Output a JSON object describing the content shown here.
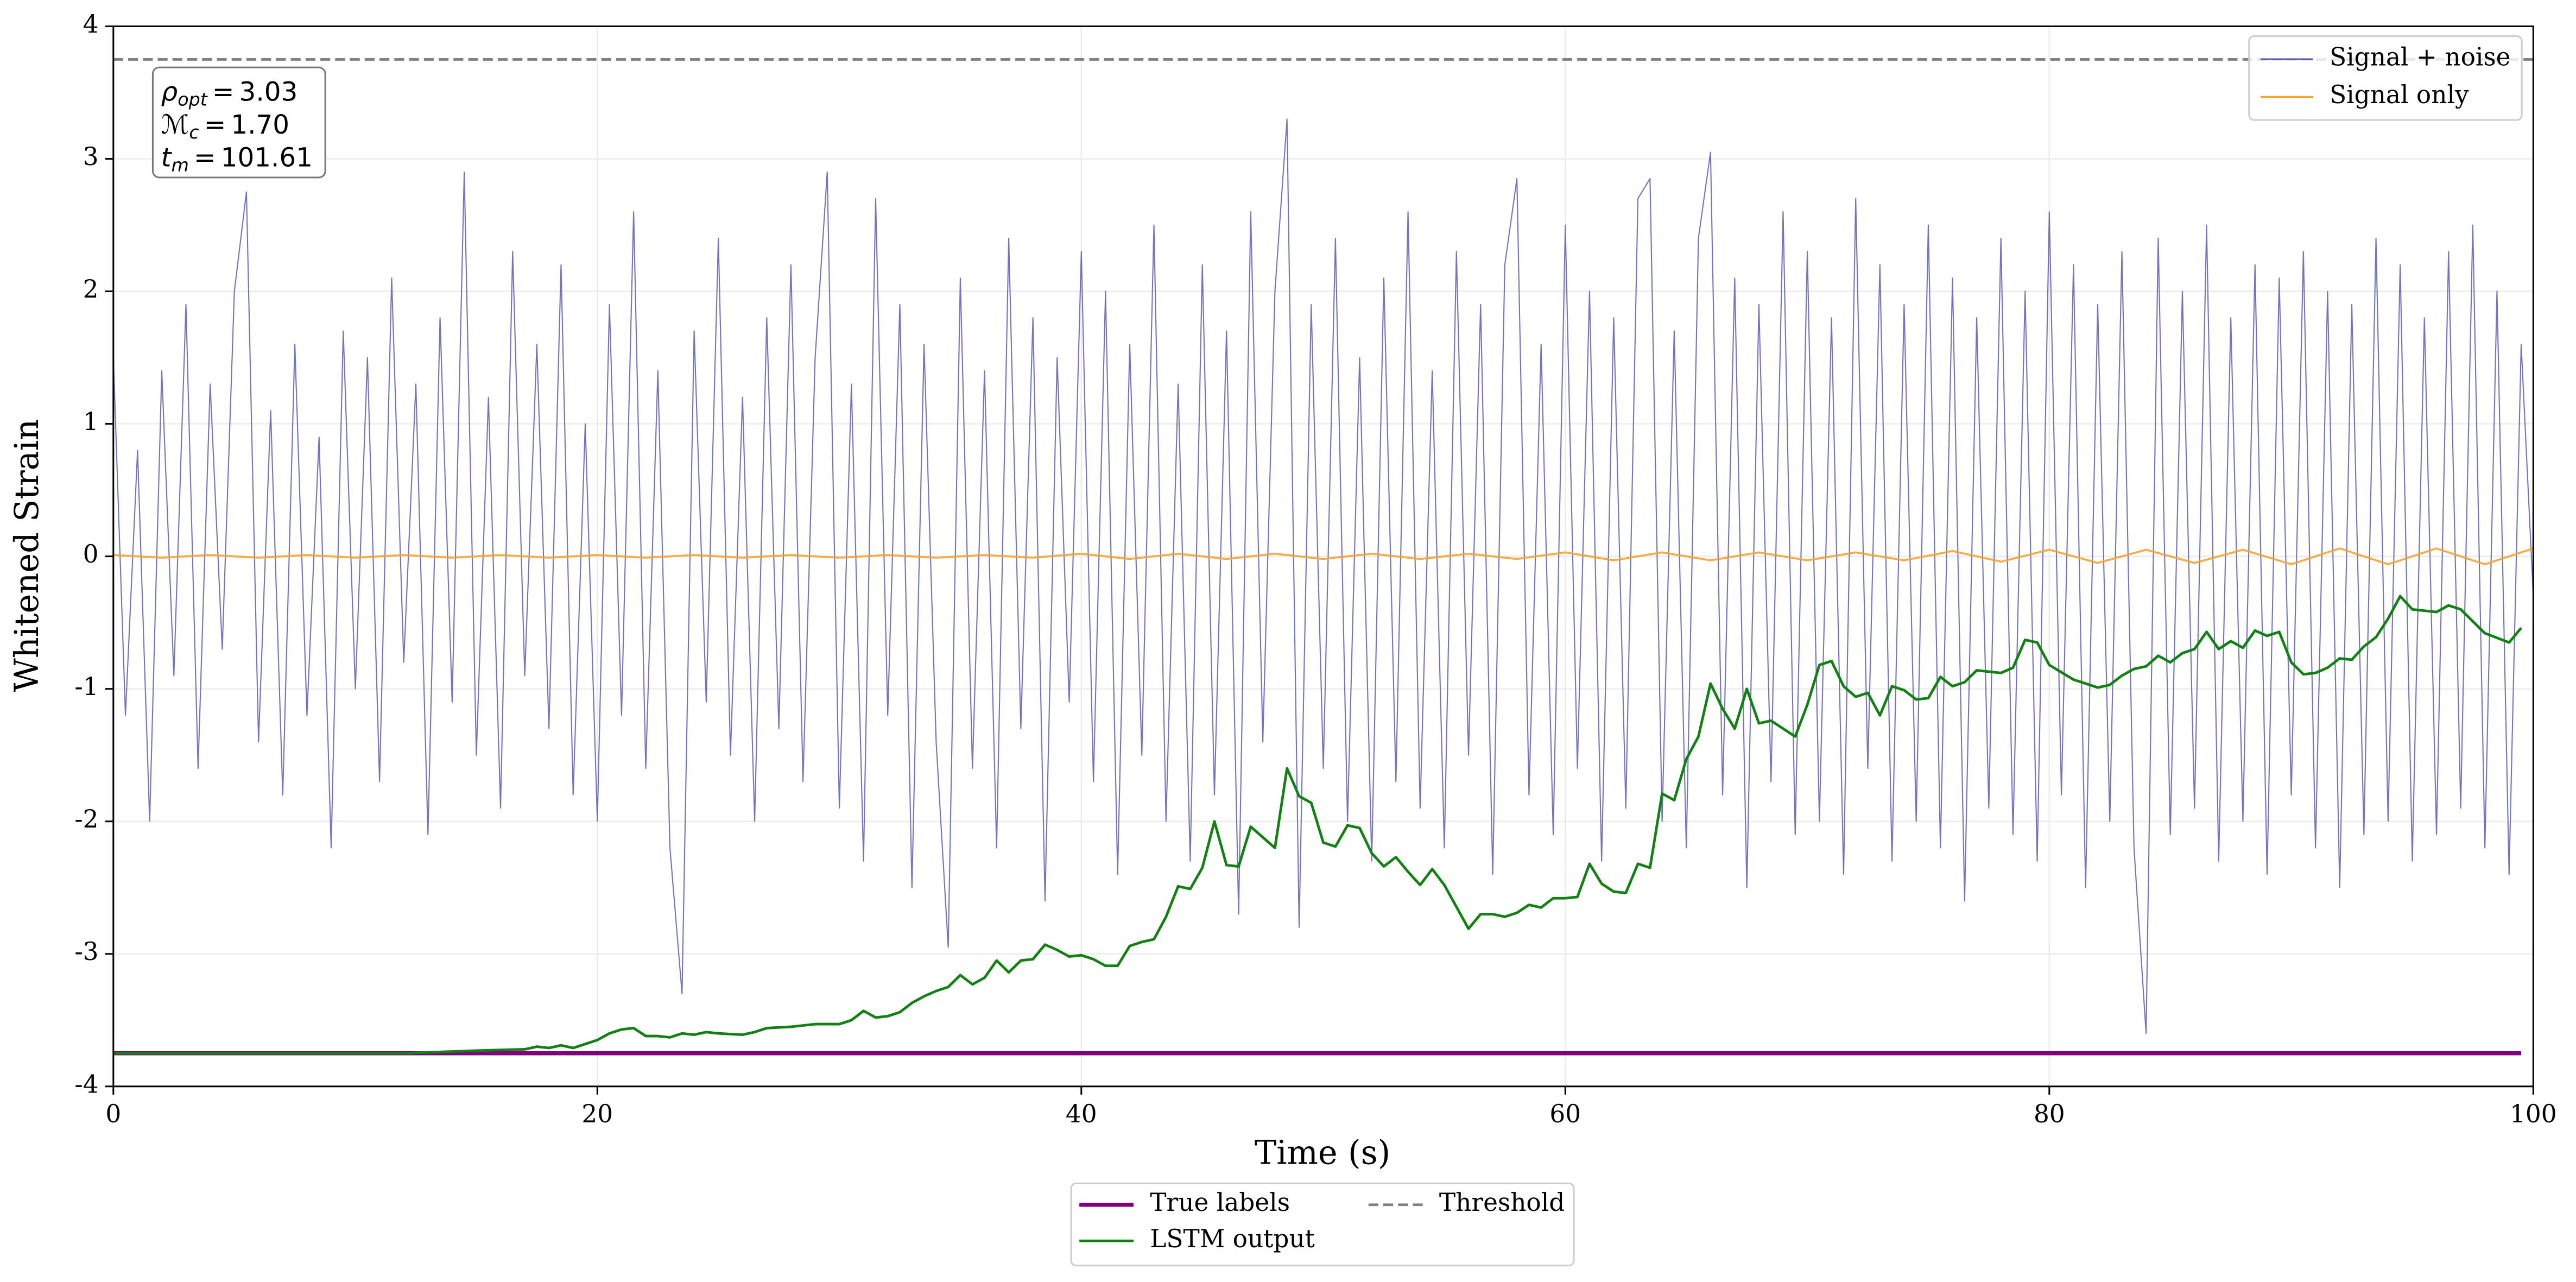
{
  "chart_data": {
    "type": "line",
    "xlabel": "Time (s)",
    "ylabel": "Whitened Strain",
    "xlim": [
      0,
      100
    ],
    "ylim": [
      -4,
      4
    ],
    "xticks": [
      0,
      20,
      40,
      60,
      80,
      100
    ],
    "yticks": [
      -4,
      -3,
      -2,
      -1,
      0,
      1,
      2,
      3,
      4
    ],
    "grid": true,
    "annotations": [
      {
        "symbol": "ρ",
        "subscript": "opt",
        "relation": "=",
        "value": "3.03"
      },
      {
        "symbol": "ℳ",
        "subscript": "c",
        "relation": "=",
        "value": "1.70"
      },
      {
        "symbol": "t",
        "subscript": "m",
        "relation": "=",
        "value": "101.61"
      }
    ],
    "series": [
      {
        "name": "Signal + noise",
        "color": "#5a5ab4",
        "legend": "upper right",
        "x": [
          0,
          0.5,
          1,
          1.5,
          2,
          2.5,
          3,
          3.5,
          4,
          4.5,
          5,
          5.5,
          6,
          6.5,
          7,
          7.5,
          8,
          8.5,
          9,
          9.5,
          10,
          10.5,
          11,
          11.5,
          12,
          12.5,
          13,
          13.5,
          14,
          14.5,
          15,
          15.5,
          16,
          16.5,
          17,
          17.5,
          18,
          18.5,
          19,
          19.5,
          20,
          20.5,
          21,
          21.5,
          22,
          22.5,
          23,
          23.5,
          24,
          24.5,
          25,
          25.5,
          26,
          26.5,
          27,
          27.5,
          28,
          28.5,
          29,
          29.5,
          30,
          30.5,
          31,
          31.5,
          32,
          32.5,
          33,
          33.5,
          34,
          34.5,
          35,
          35.5,
          36,
          36.5,
          37,
          37.5,
          38,
          38.5,
          39,
          39.5,
          40,
          40.5,
          41,
          41.5,
          42,
          42.5,
          43,
          43.5,
          44,
          44.5,
          45,
          45.5,
          46,
          46.5,
          47,
          47.5,
          48,
          48.5,
          49,
          49.5,
          50,
          50.5,
          51,
          51.5,
          52,
          52.5,
          53,
          53.5,
          54,
          54.5,
          55,
          55.5,
          56,
          56.5,
          57,
          57.5,
          58,
          58.5,
          59,
          59.5,
          60,
          60.5,
          61,
          61.5,
          62,
          62.5,
          63,
          63.5,
          64,
          64.5,
          65,
          65.5,
          66,
          66.5,
          67,
          67.5,
          68,
          68.5,
          69,
          69.5,
          70,
          70.5,
          71,
          71.5,
          72,
          72.5,
          73,
          73.5,
          74,
          74.5,
          75,
          75.5,
          76,
          76.5,
          77,
          77.5,
          78,
          78.5,
          79,
          79.5,
          80,
          80.5,
          81,
          81.5,
          82,
          82.5,
          83,
          83.5,
          84,
          84.5,
          85,
          85.5,
          86,
          86.5,
          87,
          87.5,
          88,
          88.5,
          89,
          89.5,
          90,
          90.5,
          91,
          91.5,
          92,
          92.5,
          93,
          93.5,
          94,
          94.5,
          95,
          95.5,
          96,
          96.5,
          97,
          97.5,
          98,
          98.5,
          99,
          99.5,
          100
        ],
        "values": [
          1.5,
          -1.2,
          0.8,
          -2.0,
          1.4,
          -0.9,
          1.9,
          -1.6,
          1.3,
          -0.7,
          2.0,
          2.75,
          -1.4,
          1.1,
          -1.8,
          1.6,
          -1.2,
          0.9,
          -2.2,
          1.7,
          -1.0,
          1.5,
          -1.7,
          2.1,
          -0.8,
          1.3,
          -2.1,
          1.8,
          -1.1,
          2.9,
          -1.5,
          1.2,
          -1.9,
          2.3,
          -0.9,
          1.6,
          -1.3,
          2.2,
          -1.8,
          1.0,
          -2.0,
          1.9,
          -1.2,
          2.6,
          -1.6,
          1.4,
          -2.2,
          -3.3,
          1.7,
          -1.1,
          2.4,
          -1.5,
          1.2,
          -2.0,
          1.8,
          -1.3,
          2.2,
          -1.7,
          1.5,
          2.9,
          -1.9,
          1.3,
          -2.3,
          2.7,
          -1.2,
          1.9,
          -2.5,
          1.6,
          -1.4,
          -2.95,
          2.1,
          -1.6,
          1.4,
          -2.2,
          2.4,
          -1.3,
          1.8,
          -2.6,
          1.5,
          -1.1,
          2.3,
          -1.7,
          2.0,
          -2.4,
          1.6,
          -1.5,
          2.5,
          -2.0,
          1.3,
          -2.3,
          2.2,
          -1.8,
          1.7,
          -2.7,
          2.6,
          -1.4,
          2.0,
          3.3,
          -2.8,
          1.9,
          -1.6,
          2.4,
          -2.0,
          1.5,
          -2.3,
          2.1,
          -1.7,
          2.6,
          -1.9,
          1.4,
          -2.2,
          2.3,
          -1.5,
          1.9,
          -2.4,
          2.2,
          2.85,
          -1.8,
          1.6,
          -2.1,
          2.5,
          -1.6,
          2.0,
          -2.3,
          1.8,
          -1.9,
          2.7,
          2.85,
          -2.0,
          1.7,
          -2.2,
          2.4,
          3.05,
          -1.8,
          2.1,
          -2.5,
          1.9,
          -1.7,
          2.6,
          -2.1,
          2.3,
          -2.0,
          1.8,
          -2.4,
          2.7,
          -1.6,
          2.2,
          -2.3,
          1.9,
          -2.0,
          2.5,
          -2.2,
          2.1,
          -2.6,
          1.8,
          -1.9,
          2.4,
          -2.1,
          2.0,
          -2.3,
          2.6,
          -1.8,
          2.2,
          -2.5,
          1.9,
          -2.0,
          2.3,
          -2.2,
          -3.6,
          2.4,
          -2.1,
          2.0,
          -1.9,
          2.5,
          -2.3,
          1.8,
          -2.0,
          2.2,
          -2.4,
          2.1,
          -1.8,
          2.3,
          -2.2,
          2.0,
          -2.5,
          1.9,
          -2.1,
          2.4,
          -2.0,
          2.2,
          -2.3,
          1.8,
          -2.1,
          2.3,
          -1.9,
          2.5,
          -2.2,
          2.0,
          -2.4,
          1.6,
          -0.3
        ]
      },
      {
        "name": "Signal only",
        "color": "#f5a331",
        "legend": "upper right",
        "x": [
          0,
          2,
          4,
          6,
          8,
          10,
          12,
          14,
          16,
          18,
          20,
          22,
          24,
          26,
          28,
          30,
          32,
          34,
          36,
          38,
          40,
          42,
          44,
          46,
          48,
          50,
          52,
          54,
          56,
          58,
          60,
          62,
          64,
          66,
          68,
          70,
          72,
          74,
          76,
          78,
          80,
          82,
          84,
          86,
          88,
          90,
          92,
          94,
          96,
          98,
          100
        ],
        "values": [
          0.01,
          -0.01,
          0.01,
          -0.01,
          0.01,
          -0.01,
          0.01,
          -0.01,
          0.01,
          -0.01,
          0.01,
          -0.01,
          0.01,
          -0.01,
          0.01,
          -0.01,
          0.01,
          -0.01,
          0.01,
          -0.01,
          0.02,
          -0.02,
          0.02,
          -0.02,
          0.02,
          -0.02,
          0.02,
          -0.02,
          0.02,
          -0.02,
          0.03,
          -0.03,
          0.03,
          -0.03,
          0.03,
          -0.03,
          0.03,
          -0.03,
          0.04,
          -0.04,
          0.05,
          -0.05,
          0.05,
          -0.05,
          0.05,
          -0.06,
          0.06,
          -0.06,
          0.06,
          -0.06,
          0.06
        ]
      },
      {
        "name": "True labels",
        "color": "#800080",
        "legend": "lower center",
        "x": [
          0,
          99.5
        ],
        "values": [
          -3.75,
          -3.75
        ]
      },
      {
        "name": "LSTM output",
        "color": "#138013",
        "legend": "lower center",
        "x": [
          0,
          12,
          15,
          17,
          17.5,
          18,
          18.5,
          19,
          19.5,
          20,
          20.5,
          21,
          21.5,
          22,
          22.5,
          23,
          23.5,
          24,
          24.5,
          25,
          26,
          26.5,
          27,
          28,
          29,
          30,
          30.5,
          31,
          31.5,
          32,
          32.5,
          33,
          33.5,
          34,
          34.5,
          35,
          35.5,
          36,
          36.5,
          37,
          37.5,
          38,
          38.5,
          39,
          39.5,
          40,
          40.5,
          41,
          41.5,
          42,
          42.5,
          43,
          43.5,
          44,
          44.5,
          45,
          45.5,
          46,
          46.5,
          47,
          47.5,
          48,
          48.5,
          49,
          49.5,
          50,
          50.5,
          51,
          51.5,
          52,
          52.5,
          53,
          53.5,
          54,
          54.5,
          55,
          56,
          56.5,
          57,
          57.5,
          58,
          58.5,
          59,
          59.5,
          60,
          60.5,
          61,
          61.5,
          62,
          62.5,
          63,
          63.5,
          64,
          64.5,
          65,
          65.5,
          66,
          66.5,
          67,
          67.5,
          68,
          68.5,
          69,
          69.5,
          70,
          70.5,
          71,
          71.5,
          72,
          72.5,
          73,
          73.5,
          74,
          74.5,
          75,
          75.5,
          76,
          76.5,
          77,
          78,
          78.5,
          79,
          79.5,
          80,
          81,
          82,
          82.5,
          83,
          83.5,
          84,
          84.5,
          85,
          85.5,
          86,
          86.5,
          87,
          87.5,
          88,
          88.5,
          89,
          89.5,
          90,
          90.5,
          91,
          91.5,
          92,
          92.5,
          93,
          93.5,
          94,
          94.5,
          95,
          96,
          96.5,
          97,
          98,
          99,
          99.5
        ],
        "values": [
          -3.75,
          -3.75,
          -3.73,
          -3.72,
          -3.7,
          -3.71,
          -3.69,
          -3.71,
          -3.68,
          -3.65,
          -3.6,
          -3.57,
          -3.56,
          -3.62,
          -3.62,
          -3.63,
          -3.6,
          -3.61,
          -3.59,
          -3.6,
          -3.61,
          -3.59,
          -3.56,
          -3.55,
          -3.53,
          -3.53,
          -3.5,
          -3.43,
          -3.48,
          -3.47,
          -3.44,
          -3.37,
          -3.32,
          -3.28,
          -3.25,
          -3.16,
          -3.23,
          -3.18,
          -3.05,
          -3.14,
          -3.05,
          -3.04,
          -2.93,
          -2.97,
          -3.02,
          -3.01,
          -3.04,
          -3.09,
          -3.09,
          -2.94,
          -2.91,
          -2.89,
          -2.72,
          -2.49,
          -2.51,
          -2.35,
          -2.0,
          -2.33,
          -2.34,
          -2.04,
          -2.12,
          -2.2,
          -1.6,
          -1.81,
          -1.86,
          -2.16,
          -2.19,
          -2.03,
          -2.05,
          -2.24,
          -2.34,
          -2.27,
          -2.38,
          -2.48,
          -2.36,
          -2.48,
          -2.81,
          -2.7,
          -2.7,
          -2.72,
          -2.69,
          -2.63,
          -2.65,
          -2.58,
          -2.58,
          -2.57,
          -2.32,
          -2.47,
          -2.53,
          -2.54,
          -2.32,
          -2.35,
          -1.79,
          -1.84,
          -1.53,
          -1.36,
          -0.96,
          -1.15,
          -1.3,
          -1.0,
          -1.26,
          -1.24,
          -1.3,
          -1.36,
          -1.12,
          -0.82,
          -0.79,
          -0.98,
          -1.06,
          -1.03,
          -1.2,
          -0.98,
          -1.01,
          -1.08,
          -1.07,
          -0.91,
          -0.98,
          -0.95,
          -0.86,
          -0.88,
          -0.84,
          -0.63,
          -0.65,
          -0.82,
          -0.93,
          -0.99,
          -0.97,
          -0.9,
          -0.85,
          -0.83,
          -0.75,
          -0.8,
          -0.73,
          -0.7,
          -0.57,
          -0.7,
          -0.64,
          -0.69,
          -0.56,
          -0.6,
          -0.57,
          -0.8,
          -0.89,
          -0.88,
          -0.84,
          -0.77,
          -0.78,
          -0.68,
          -0.61,
          -0.47,
          -0.3,
          -0.4,
          -0.42,
          -0.37,
          -0.4,
          -0.58,
          -0.65,
          -0.54
        ]
      },
      {
        "name": "Threshold",
        "color": "#808080",
        "legend": "lower center",
        "dashed": true,
        "x": [
          0,
          100
        ],
        "values": [
          3.75,
          3.75
        ]
      }
    ]
  }
}
